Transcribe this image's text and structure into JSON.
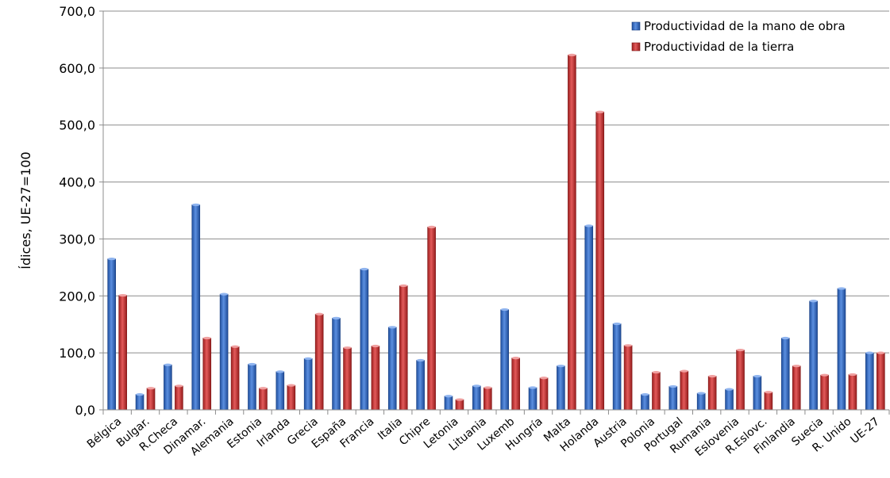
{
  "chart_data": {
    "type": "bar",
    "title": "",
    "xlabel": "",
    "ylabel": "Ídices, UE-27=100",
    "ylim": [
      0,
      700
    ],
    "yticks": [
      0,
      100,
      200,
      300,
      400,
      500,
      600,
      700
    ],
    "ytick_labels": [
      "0,0",
      "100,0",
      "200,0",
      "300,0",
      "400,0",
      "500,0",
      "600,0",
      "700,0"
    ],
    "grid": true,
    "legend_position": "top-right",
    "categories": [
      "Bélgica",
      "Bulgar.",
      "R.Checa",
      "Dinamar.",
      "Alemania",
      "Estonia",
      "Irlanda",
      "Grecia",
      "España",
      "Francia",
      "Italia",
      "Chipre",
      "Letonia",
      "Lituania",
      "Luxemb",
      "Hungría",
      "Malta",
      "Holanda",
      "Austria",
      "Polonia",
      "Portugal",
      "Rumania",
      "Eslovenia",
      "R.Eslovc.",
      "Finlandia",
      "Suecia",
      "R. Unido",
      "UE-27"
    ],
    "series": [
      {
        "name": "Productividad de la mano de obra",
        "color": "#3a6fc4",
        "values": [
          265,
          27,
          79,
          360,
          203,
          80,
          67,
          90,
          161,
          247,
          145,
          87,
          24,
          42,
          176,
          39,
          77,
          323,
          151,
          27,
          41,
          29,
          36,
          59,
          126,
          191,
          213,
          100
        ]
      },
      {
        "name": "Productividad de la tierra",
        "color": "#c93a3a",
        "values": [
          201,
          38,
          42,
          126,
          111,
          38,
          43,
          168,
          109,
          112,
          218,
          321,
          18,
          39,
          91,
          56,
          623,
          523,
          113,
          66,
          68,
          59,
          105,
          31,
          77,
          61,
          62,
          100
        ]
      }
    ]
  }
}
